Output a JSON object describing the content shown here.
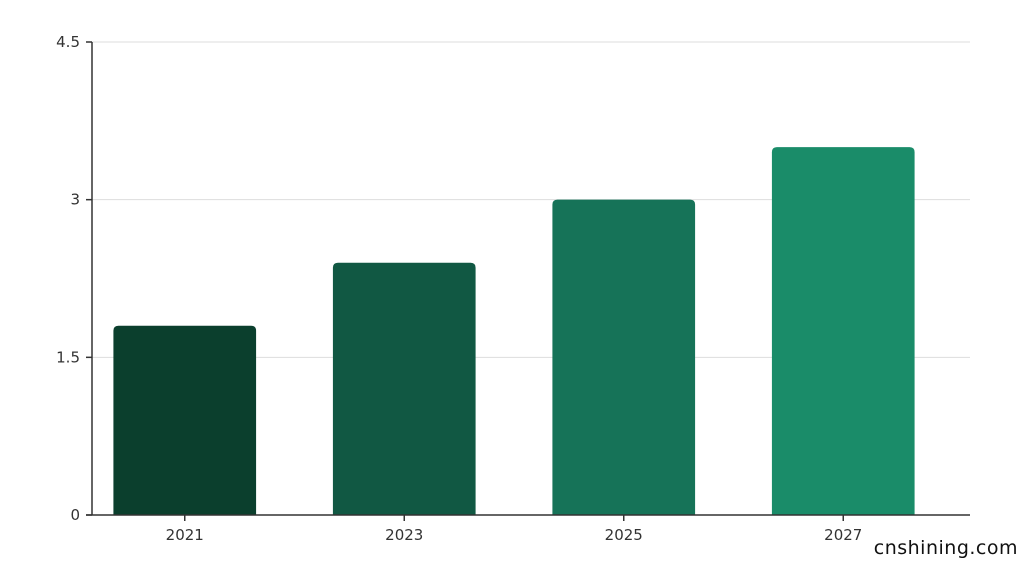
{
  "chart_data": {
    "type": "bar",
    "categories": [
      "2021",
      "2023",
      "2025",
      "2027"
    ],
    "values": [
      1.8,
      2.4,
      3.0,
      3.5
    ],
    "title": "",
    "xlabel": "",
    "ylabel": "",
    "ylim": [
      0,
      4.5
    ],
    "yticks": [
      0,
      1.5,
      3,
      4.5
    ],
    "ytick_labels": [
      "0",
      "1.5",
      "3",
      "4.5"
    ],
    "grid": true,
    "bar_colors": [
      "#0b3f2d",
      "#115843",
      "#167358",
      "#1a8c69"
    ]
  },
  "watermark": "cnshining.com"
}
